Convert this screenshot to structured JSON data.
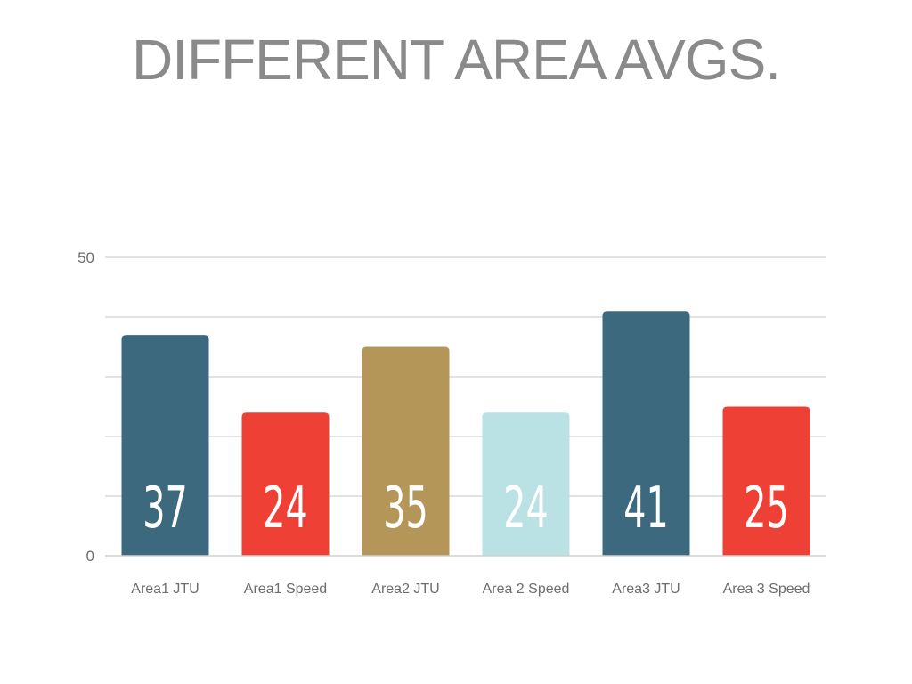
{
  "chart_data": {
    "type": "bar",
    "title": "DIFFERENT AREA AVGS.",
    "xlabel": "",
    "ylabel": "",
    "categories": [
      "Area1 JTU",
      "Area1 Speed",
      "Area2 JTU",
      "Area 2 Speed",
      "Area3 JTU",
      "Area 3 Speed"
    ],
    "values": [
      37,
      24,
      35,
      24,
      41,
      25
    ],
    "data_labels": [
      "37",
      "24",
      "35",
      "24",
      "41",
      "25"
    ],
    "colors": [
      "#3d697e",
      "#ef4035",
      "#b49658",
      "#bae2e4",
      "#3d697e",
      "#ef4035"
    ],
    "ylim": [
      0,
      50
    ],
    "y_ticks": [
      0,
      50
    ],
    "y_tick_labels": [
      "0",
      "50"
    ],
    "grid_values": [
      10,
      20,
      30,
      40,
      50
    ],
    "grid": true,
    "legend": "none"
  }
}
